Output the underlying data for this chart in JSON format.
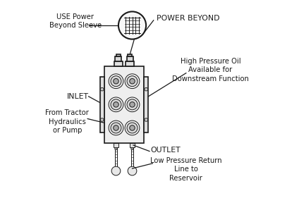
{
  "bg_color": "#ffffff",
  "line_color": "#1a1a1a",
  "labels": {
    "use_power": "USE Power\nBeyond Sleeve",
    "power_beyond": "POWER BEYOND",
    "high_pressure": "High Pressure Oil\nAvailable for\nDownstream Function",
    "inlet": "INLET",
    "from_tractor": "From Tractor\nHydraulics\nor Pump",
    "outlet": "OUTLET",
    "low_pressure": "Low Pressure Return\nLine to\nReservoir"
  },
  "vcx": 0.375,
  "vcy": 0.485,
  "vw": 0.195,
  "vh": 0.38,
  "icx": 0.415,
  "icy": 0.875,
  "ir": 0.068
}
